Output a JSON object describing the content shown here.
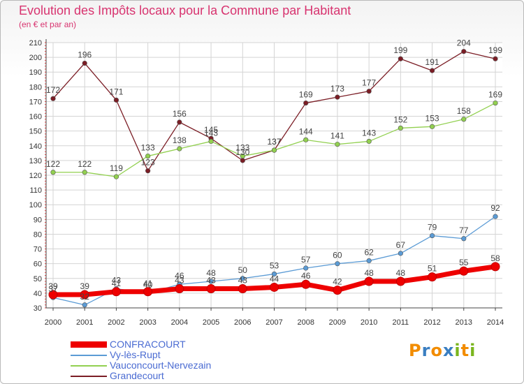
{
  "chart_data": {
    "type": "line",
    "title": "Evolution des Impôts locaux pour la Commune par Habitant",
    "subtitle": "(en € et par an)",
    "xlabel": "",
    "ylabel": "",
    "categories": [
      "2000",
      "2001",
      "2002",
      "2003",
      "2004",
      "2005",
      "2006",
      "2007",
      "2008",
      "2009",
      "2010",
      "2011",
      "2012",
      "2013",
      "2014"
    ],
    "ylim": [
      30,
      210
    ],
    "yticks": [
      30,
      40,
      50,
      60,
      70,
      80,
      90,
      100,
      110,
      120,
      130,
      140,
      150,
      160,
      170,
      180,
      190,
      200,
      210
    ],
    "grid": true,
    "legend_position": "bottom-left",
    "series": [
      {
        "name": "CONFRACOURT",
        "color": "#ee0000",
        "values": [
          39,
          39,
          41,
          41,
          43,
          43,
          43,
          44,
          46,
          42,
          48,
          48,
          51,
          55,
          58
        ]
      },
      {
        "name": "Vy-lès-Rupt",
        "color": "#5b9bd5",
        "values": [
          37,
          32,
          43,
          40,
          46,
          48,
          50,
          53,
          57,
          60,
          62,
          67,
          79,
          77,
          92
        ]
      },
      {
        "name": "Vauconcourt-Nervezain",
        "color": "#92d050",
        "values": [
          122,
          122,
          119,
          133,
          138,
          143,
          133,
          137,
          144,
          141,
          143,
          152,
          153,
          158,
          169
        ]
      },
      {
        "name": "Grandecourt",
        "color": "#7b1d25",
        "values": [
          172,
          196,
          171,
          123,
          156,
          145,
          130,
          137,
          169,
          173,
          177,
          199,
          191,
          204,
          199
        ]
      }
    ]
  },
  "logo": {
    "text": "Proxiti",
    "letters": [
      "P",
      "r",
      "o",
      "x",
      "i",
      "t",
      "i"
    ],
    "colors": [
      "#f28c00",
      "#3a7ec1",
      "#f28c00",
      "#3a7ec1",
      "#7ab51d",
      "#f28c00",
      "#7ab51d"
    ]
  }
}
